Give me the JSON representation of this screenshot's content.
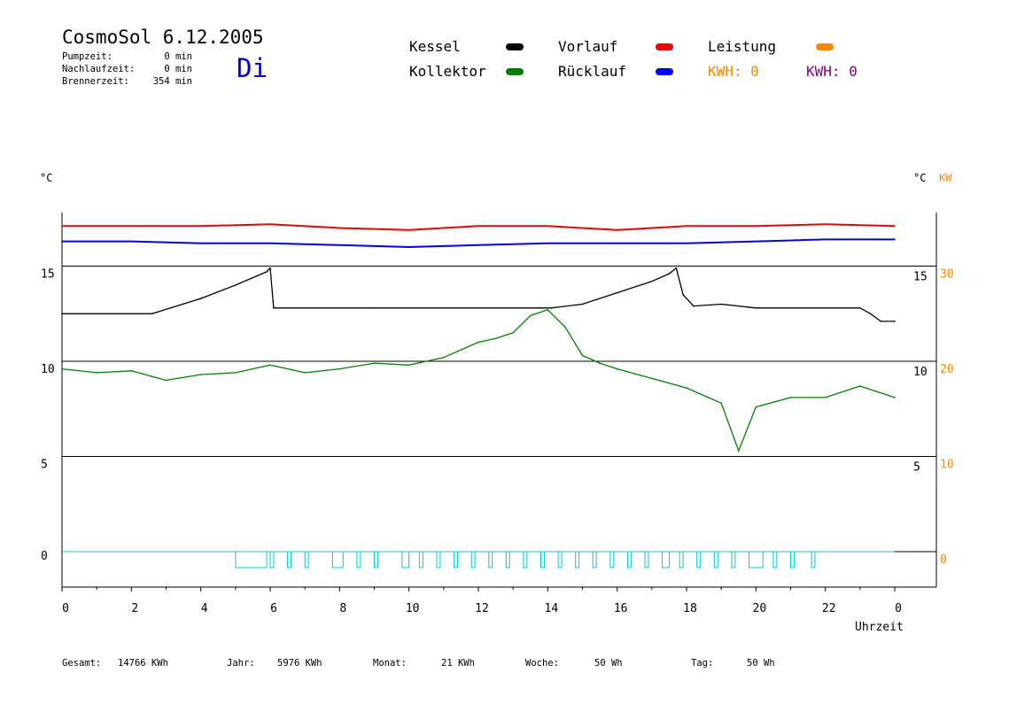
{
  "header": {
    "title": "CosmoSol 6.12.2005",
    "weekday": "Di",
    "stats": [
      {
        "label": "Pumpzeit:",
        "value": "0 min"
      },
      {
        "label": "Nachlaufzeit:",
        "value": "0 min"
      },
      {
        "label": "Brennerzeit:",
        "value": "354 min"
      }
    ]
  },
  "legend": {
    "items": [
      {
        "label": "Kessel",
        "color": "#000000"
      },
      {
        "label": "Vorlauf",
        "color": "#ee0000"
      },
      {
        "label": "Leistung",
        "color": "#ff8800"
      },
      {
        "label": "Kollektor",
        "color": "#008000"
      },
      {
        "label": "Rücklauf",
        "color": "#0000ee"
      }
    ],
    "kwh_orange": "KWH: 0",
    "kwh_purple": "KWH: 0"
  },
  "axes": {
    "left_unit": "°C",
    "right_unit_temp": "°C",
    "right_unit_power": "KW",
    "xlabel": "Uhrzeit"
  },
  "footer": [
    {
      "label": "Gesamt:",
      "value": "14766 KWh"
    },
    {
      "label": "Jahr:",
      "value": "5976 KWh"
    },
    {
      "label": "Monat:",
      "value": "21 KWh"
    },
    {
      "label": "Woche:",
      "value": "50 Wh"
    },
    {
      "label": "Tag:",
      "value": "50 Wh"
    }
  ],
  "chart_data": {
    "type": "line",
    "x_ticks": [
      "0",
      "2",
      "4",
      "6",
      "8",
      "10",
      "12",
      "14",
      "16",
      "18",
      "20",
      "22",
      "0"
    ],
    "x_range_hours": [
      0,
      24
    ],
    "left_ticks": [
      0,
      5,
      10,
      15
    ],
    "right_temp_ticks": [
      5,
      10,
      15
    ],
    "right_kw_ticks": [
      0,
      10,
      20,
      30
    ],
    "grid": true,
    "series": [
      {
        "name": "Kessel",
        "color": "#000000",
        "x": [
          0,
          2.6,
          4,
          5,
          5.9,
          6.0,
          6.1,
          9,
          13.8,
          14.1,
          15,
          16,
          17,
          17.5,
          17.7,
          17.9,
          18.2,
          19,
          20,
          23,
          23.3,
          23.6,
          24
        ],
        "y": [
          12.5,
          12.5,
          13.3,
          14.0,
          14.7,
          14.9,
          12.8,
          12.8,
          12.8,
          12.8,
          13.0,
          13.6,
          14.2,
          14.6,
          14.9,
          13.5,
          12.9,
          13.0,
          12.8,
          12.8,
          12.5,
          12.1,
          12.1
        ]
      },
      {
        "name": "Kollektor",
        "color": "#008000",
        "x": [
          0,
          1,
          2,
          3,
          4,
          5,
          6,
          7,
          8,
          9,
          10,
          11,
          12,
          12.5,
          13,
          13.5,
          14,
          14.5,
          15,
          15.5,
          16,
          17,
          18,
          19,
          19.5,
          20,
          21,
          22,
          23,
          24
        ],
        "y": [
          9.6,
          9.4,
          9.5,
          9.0,
          9.3,
          9.4,
          9.8,
          9.4,
          9.6,
          9.9,
          9.8,
          10.2,
          11.0,
          11.2,
          11.5,
          12.4,
          12.7,
          11.8,
          10.3,
          9.9,
          9.6,
          9.1,
          8.6,
          7.8,
          5.3,
          7.6,
          8.1,
          8.1,
          8.7,
          8.1
        ]
      },
      {
        "name": "Vorlauf",
        "color": "#ee0000",
        "x": [
          0,
          2,
          4,
          6,
          8,
          10,
          12,
          14,
          16,
          18,
          20,
          22,
          24
        ],
        "y": [
          17.1,
          17.1,
          17.1,
          17.2,
          17.0,
          16.9,
          17.1,
          17.1,
          16.9,
          17.1,
          17.1,
          17.2,
          17.1
        ]
      },
      {
        "name": "Rücklauf",
        "color": "#0000ee",
        "x": [
          0,
          2,
          4,
          6,
          8,
          10,
          12,
          14,
          16,
          18,
          20,
          22,
          24
        ],
        "y": [
          16.3,
          16.3,
          16.2,
          16.2,
          16.1,
          16.0,
          16.1,
          16.2,
          16.2,
          16.2,
          16.3,
          16.4,
          16.4
        ]
      }
    ],
    "pump_pulses_hours": [
      [
        5.0,
        5.9
      ],
      [
        6.0,
        6.1
      ],
      [
        6.5,
        6.6
      ],
      [
        7.0,
        7.1
      ],
      [
        7.8,
        8.1
      ],
      [
        8.5,
        8.6
      ],
      [
        9.0,
        9.1
      ],
      [
        9.8,
        10.0
      ],
      [
        10.3,
        10.4
      ],
      [
        10.8,
        10.9
      ],
      [
        11.3,
        11.4
      ],
      [
        11.8,
        11.9
      ],
      [
        12.3,
        12.4
      ],
      [
        12.8,
        12.9
      ],
      [
        13.3,
        13.4
      ],
      [
        13.8,
        13.9
      ],
      [
        14.3,
        14.4
      ],
      [
        14.8,
        14.9
      ],
      [
        15.3,
        15.4
      ],
      [
        15.8,
        15.9
      ],
      [
        16.3,
        16.4
      ],
      [
        16.8,
        16.9
      ],
      [
        17.3,
        17.5
      ],
      [
        17.8,
        17.9
      ],
      [
        18.3,
        18.4
      ],
      [
        18.8,
        18.9
      ],
      [
        19.3,
        19.4
      ],
      [
        19.8,
        20.2
      ],
      [
        20.5,
        20.6
      ],
      [
        21.0,
        21.1
      ],
      [
        21.6,
        21.7
      ]
    ]
  }
}
